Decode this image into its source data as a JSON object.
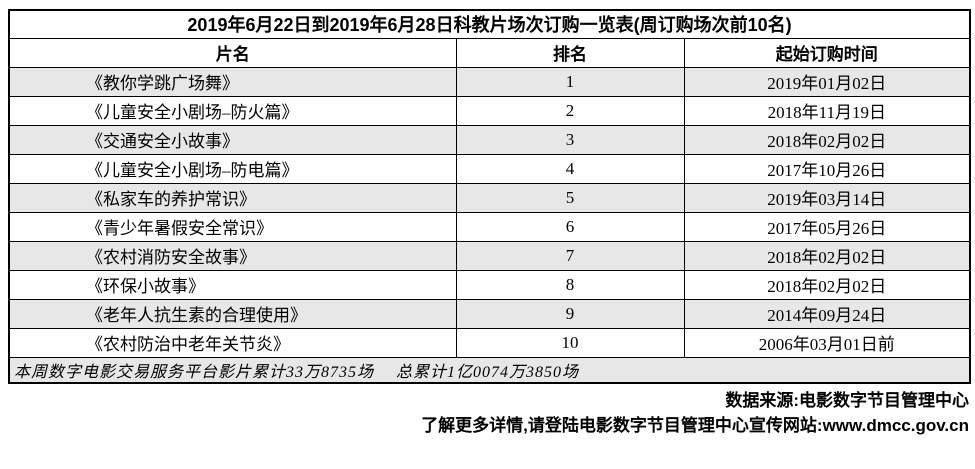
{
  "colors": {
    "row_shade": "#e7e7e7",
    "border": "#000000",
    "background": "#ffffff"
  },
  "table": {
    "title": "2019年6月22日到2019年6月28日科教片场次订购一览表(周订购场次前10名)",
    "columns": [
      "片名",
      "排名",
      "起始订购时间"
    ],
    "rows": [
      {
        "name": "《教你学跳广场舞》",
        "rank": "1",
        "date": "2019年01月02日"
      },
      {
        "name": "《儿童安全小剧场–防火篇》",
        "rank": "2",
        "date": "2018年11月19日"
      },
      {
        "name": "《交通安全小故事》",
        "rank": "3",
        "date": "2018年02月02日"
      },
      {
        "name": "《儿童安全小剧场–防电篇》",
        "rank": "4",
        "date": "2017年10月26日"
      },
      {
        "name": "《私家车的养护常识》",
        "rank": "5",
        "date": "2019年03月14日"
      },
      {
        "name": "《青少年暑假安全常识》",
        "rank": "6",
        "date": "2017年05月26日"
      },
      {
        "name": "《农村消防安全故事》",
        "rank": "7",
        "date": "2018年02月02日"
      },
      {
        "name": "《环保小故事》",
        "rank": "8",
        "date": "2018年02月02日"
      },
      {
        "name": "《老年人抗生素的合理使用》",
        "rank": "9",
        "date": "2014年09月24日"
      },
      {
        "name": "《农村防治中老年关节炎》",
        "rank": "10",
        "date": "2006年03月01日前"
      }
    ],
    "summary": "本周数字电影交易服务平台影片累计33万8735场　 总累计1亿0074万3850场"
  },
  "footer": {
    "source": "数据来源:电影数字节目管理中心",
    "more": "了解更多详情,请登陆电影数字节目管理中心宣传网站:www.dmcc.gov.cn"
  }
}
